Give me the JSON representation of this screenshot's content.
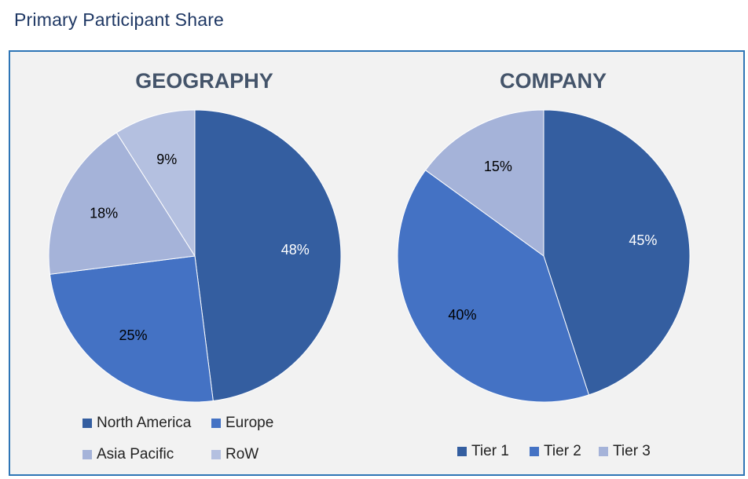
{
  "page": {
    "title": "Primary Participant Share"
  },
  "chart_data": [
    {
      "type": "pie",
      "title": "GEOGRAPHY",
      "categories": [
        "North America",
        "Europe",
        "Asia Pacific",
        "RoW"
      ],
      "values": [
        48,
        25,
        18,
        9
      ],
      "labels": [
        "48%",
        "25%",
        "18%",
        "9%"
      ],
      "colors": [
        "#345ea0",
        "#4472c4",
        "#a5b3d9",
        "#b4c0e0"
      ],
      "label_colors": [
        "#ffffff",
        "#000000",
        "#000000",
        "#000000"
      ],
      "legend_position": "bottom"
    },
    {
      "type": "pie",
      "title": "COMPANY",
      "categories": [
        "Tier 1",
        "Tier 2",
        "Tier 3"
      ],
      "values": [
        45,
        40,
        15
      ],
      "labels": [
        "45%",
        "40%",
        "15%"
      ],
      "colors": [
        "#345ea0",
        "#4472c4",
        "#a5b3d9"
      ],
      "label_colors": [
        "#ffffff",
        "#000000",
        "#000000"
      ],
      "legend_position": "bottom"
    }
  ]
}
